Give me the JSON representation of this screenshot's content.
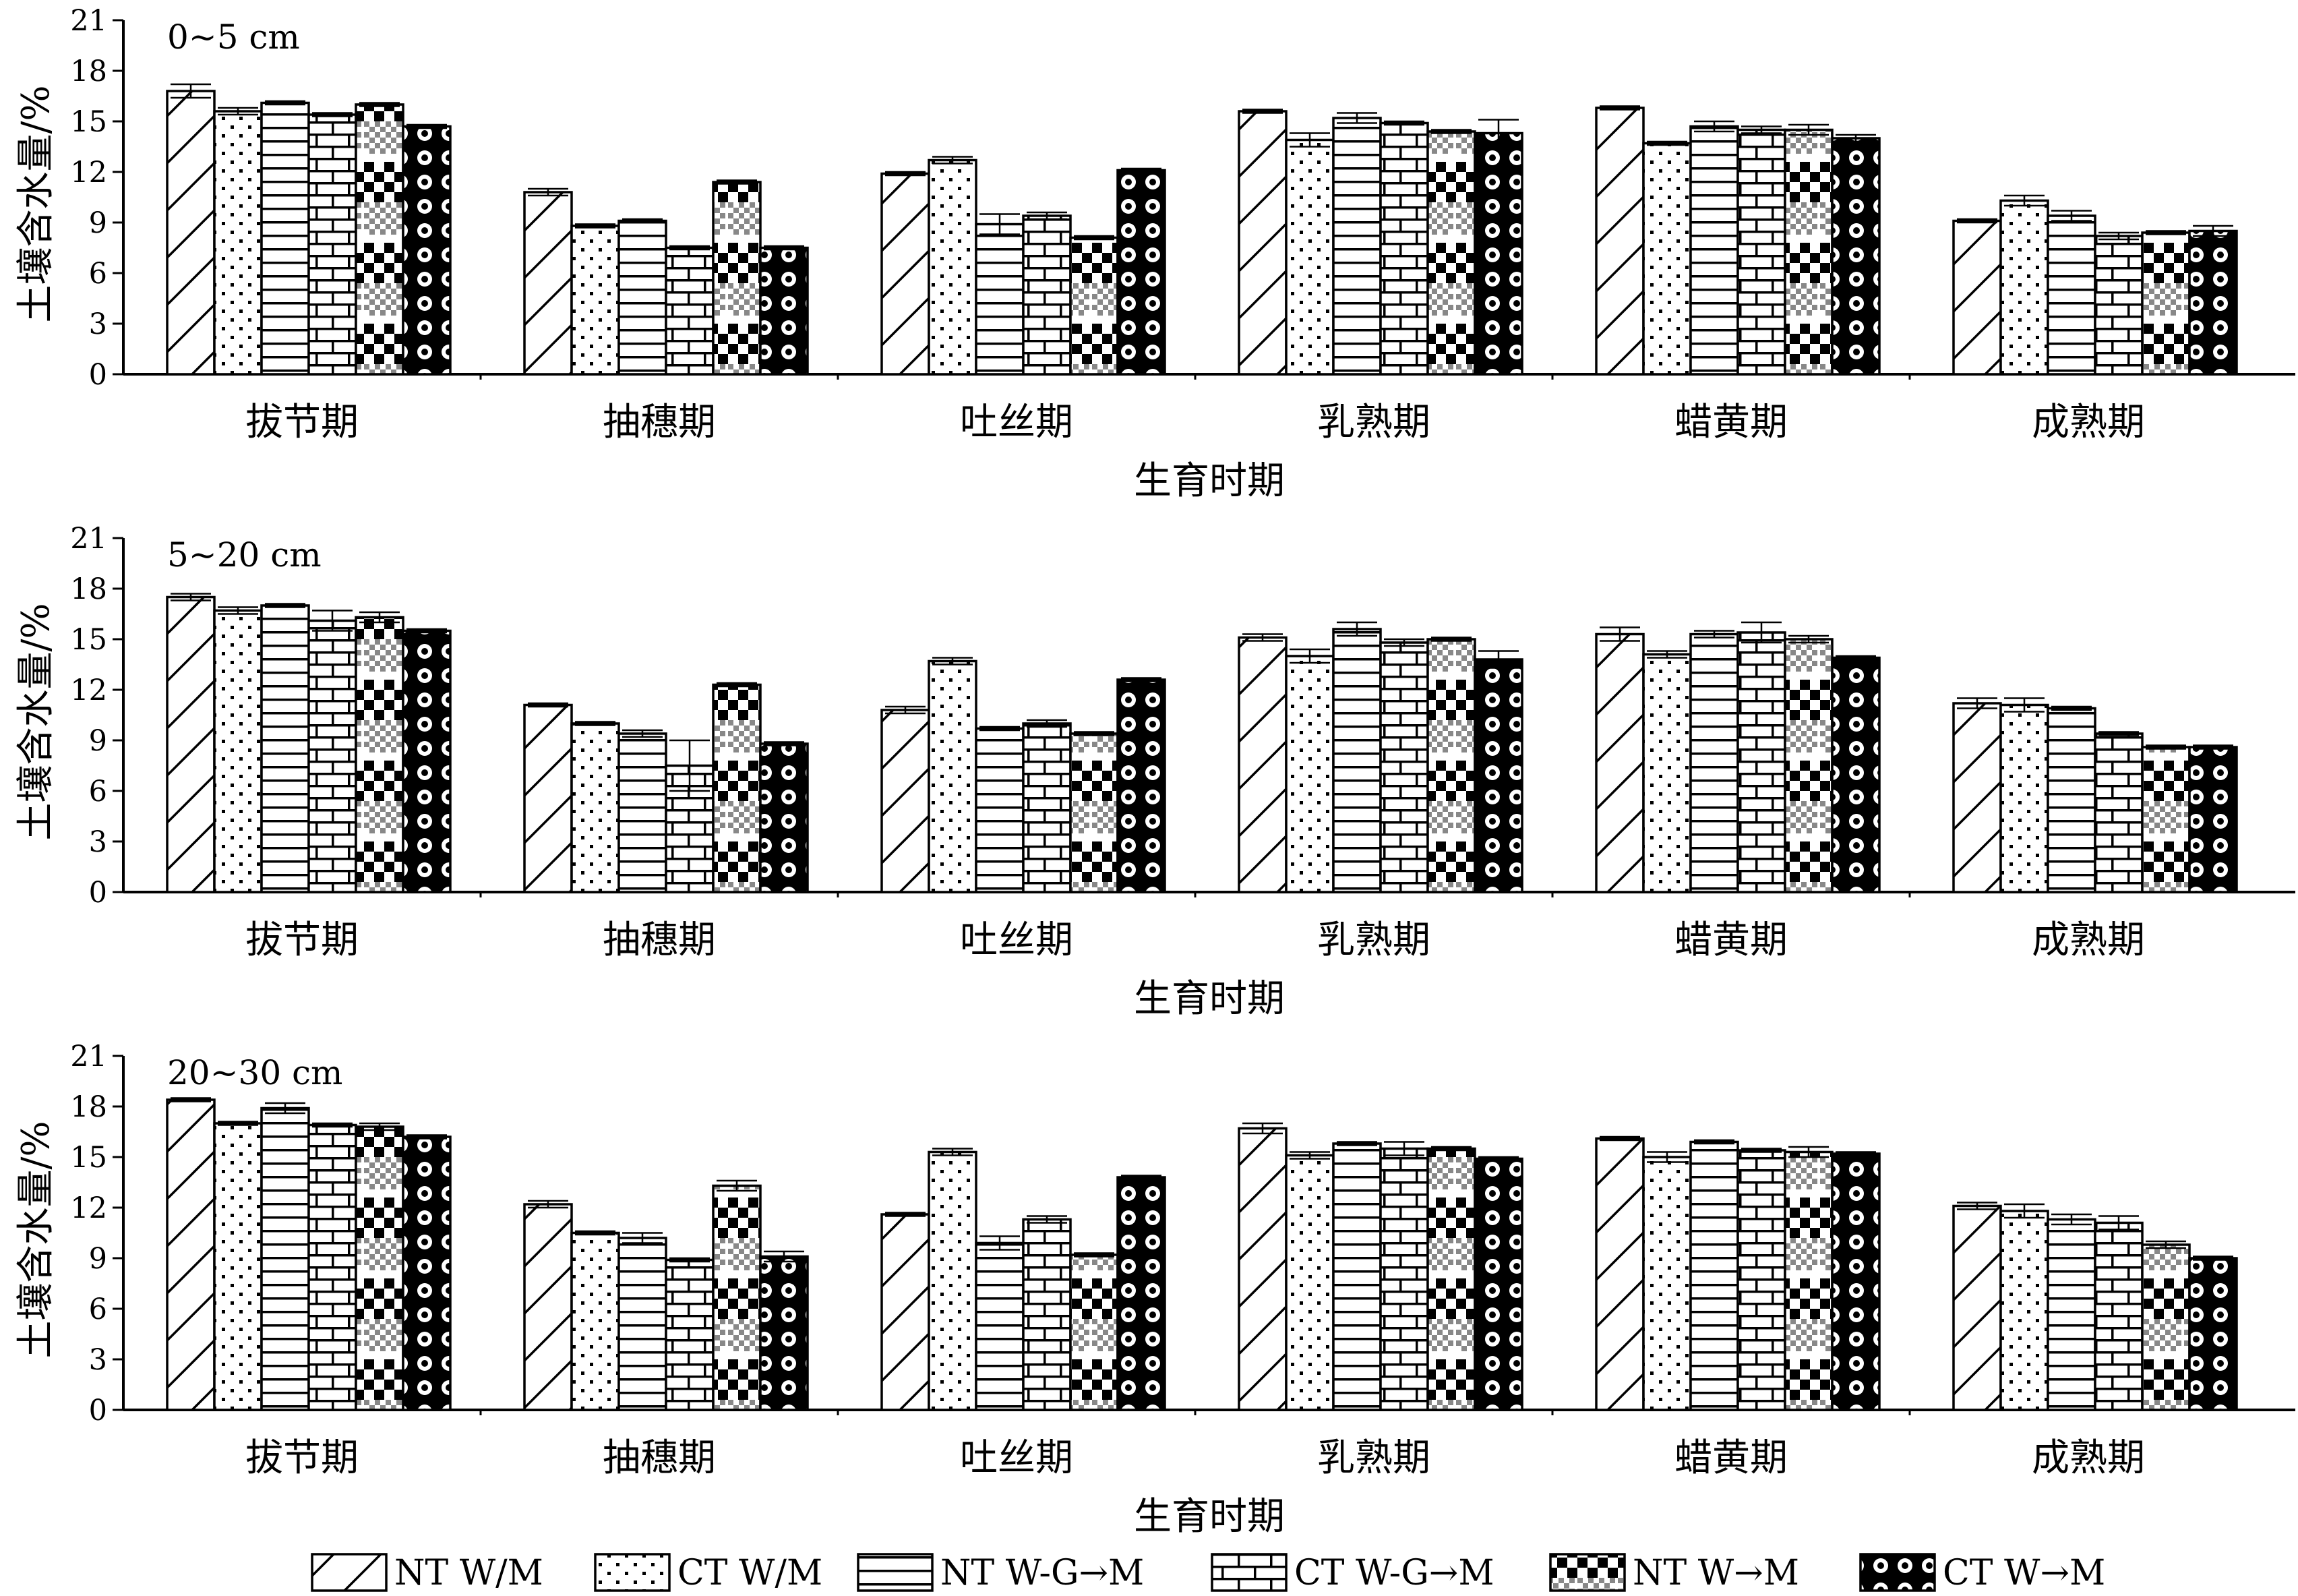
{
  "chart_data": [
    {
      "type": "bar",
      "panel_label": "0~5 cm",
      "xlabel": "生育时期",
      "ylabel": "土壤含水量/%",
      "ylim": [
        0,
        21
      ],
      "yticks": [
        0,
        3,
        6,
        9,
        12,
        15,
        18,
        21
      ],
      "categories": [
        "拔节期",
        "抽穗期",
        "吐丝期",
        "乳熟期",
        "蜡黄期",
        "成熟期"
      ],
      "series": [
        {
          "name": "NT W/M",
          "values": [
            16.8,
            10.8,
            11.9,
            15.6,
            15.8,
            9.1
          ],
          "errors": [
            0.4,
            0.2,
            0.1,
            0.1,
            0.1,
            0.1
          ]
        },
        {
          "name": "CT W/M",
          "values": [
            15.6,
            8.8,
            12.7,
            13.9,
            13.7,
            10.3
          ],
          "errors": [
            0.2,
            0.1,
            0.2,
            0.4,
            0.1,
            0.3
          ]
        },
        {
          "name": "NT W-G→M",
          "values": [
            16.1,
            9.1,
            8.9,
            15.2,
            14.7,
            9.4
          ],
          "errors": [
            0.1,
            0.1,
            0.6,
            0.3,
            0.3,
            0.3
          ]
        },
        {
          "name": "CT W-G→M",
          "values": [
            15.4,
            7.5,
            9.4,
            14.9,
            14.5,
            8.2
          ],
          "errors": [
            0.1,
            0.1,
            0.2,
            0.1,
            0.2,
            0.2
          ]
        },
        {
          "name": "NT W→M",
          "values": [
            16.0,
            11.4,
            8.1,
            14.4,
            14.5,
            8.4
          ],
          "errors": [
            0.1,
            0.1,
            0.1,
            0.1,
            0.3,
            0.1
          ]
        },
        {
          "name": "CT W→M",
          "values": [
            14.7,
            7.5,
            12.1,
            14.3,
            14.0,
            8.5
          ],
          "errors": [
            0.1,
            0.1,
            0.1,
            0.8,
            0.2,
            0.3
          ]
        }
      ]
    },
    {
      "type": "bar",
      "panel_label": "5~20 cm",
      "xlabel": "生育时期",
      "ylabel": "土壤含水量/%",
      "ylim": [
        0,
        21
      ],
      "yticks": [
        0,
        3,
        6,
        9,
        12,
        15,
        18,
        21
      ],
      "categories": [
        "拔节期",
        "抽穗期",
        "吐丝期",
        "乳熟期",
        "蜡黄期",
        "成熟期"
      ],
      "series": [
        {
          "name": "NT W/M",
          "values": [
            17.5,
            11.1,
            10.8,
            15.1,
            15.3,
            11.2
          ],
          "errors": [
            0.2,
            0.1,
            0.2,
            0.2,
            0.4,
            0.3
          ]
        },
        {
          "name": "CT W/M",
          "values": [
            16.7,
            10.0,
            13.7,
            14.0,
            14.1,
            11.1
          ],
          "errors": [
            0.2,
            0.1,
            0.2,
            0.4,
            0.2,
            0.4
          ]
        },
        {
          "name": "NT W-G→M",
          "values": [
            17.0,
            9.4,
            9.7,
            15.6,
            15.3,
            10.9
          ],
          "errors": [
            0.1,
            0.2,
            0.1,
            0.4,
            0.2,
            0.1
          ]
        },
        {
          "name": "CT W-G→M",
          "values": [
            16.1,
            7.5,
            10.0,
            14.8,
            15.4,
            9.4
          ],
          "errors": [
            0.6,
            1.5,
            0.2,
            0.2,
            0.6,
            0.1
          ]
        },
        {
          "name": "NT W→M",
          "values": [
            16.3,
            12.3,
            9.4,
            15.0,
            15.0,
            8.6
          ],
          "errors": [
            0.3,
            0.1,
            0.1,
            0.1,
            0.2,
            0.1
          ]
        },
        {
          "name": "CT W→M",
          "values": [
            15.5,
            8.8,
            12.6,
            13.8,
            13.9,
            8.6
          ],
          "errors": [
            0.1,
            0.1,
            0.1,
            0.5,
            0.1,
            0.1
          ]
        }
      ]
    },
    {
      "type": "bar",
      "panel_label": "20~30 cm",
      "xlabel": "生育时期",
      "ylabel": "土壤含水量/%",
      "ylim": [
        0,
        21
      ],
      "yticks": [
        0,
        3,
        6,
        9,
        12,
        15,
        18,
        21
      ],
      "categories": [
        "拔节期",
        "抽穗期",
        "吐丝期",
        "乳熟期",
        "蜡黄期",
        "成熟期"
      ],
      "series": [
        {
          "name": "NT W/M",
          "values": [
            18.4,
            12.2,
            11.6,
            16.7,
            16.1,
            12.1
          ],
          "errors": [
            0.1,
            0.2,
            0.1,
            0.3,
            0.1,
            0.2
          ]
        },
        {
          "name": "CT W/M",
          "values": [
            17.0,
            10.5,
            15.3,
            15.1,
            15.0,
            11.8
          ],
          "errors": [
            0.1,
            0.1,
            0.2,
            0.2,
            0.3,
            0.4
          ]
        },
        {
          "name": "NT W-G→M",
          "values": [
            17.9,
            10.2,
            9.9,
            15.8,
            15.9,
            11.3
          ],
          "errors": [
            0.3,
            0.3,
            0.4,
            0.1,
            0.1,
            0.3
          ]
        },
        {
          "name": "CT W-G→M",
          "values": [
            16.9,
            8.9,
            11.3,
            15.5,
            15.4,
            11.1
          ],
          "errors": [
            0.1,
            0.1,
            0.2,
            0.4,
            0.1,
            0.4
          ]
        },
        {
          "name": "NT W→M",
          "values": [
            16.8,
            13.3,
            9.2,
            15.5,
            15.3,
            9.8
          ],
          "errors": [
            0.2,
            0.3,
            0.1,
            0.1,
            0.3,
            0.2
          ]
        },
        {
          "name": "CT W→M",
          "values": [
            16.2,
            9.1,
            13.8,
            14.9,
            15.2,
            9.0
          ],
          "errors": [
            0.1,
            0.3,
            0.1,
            0.1,
            0.1,
            0.1
          ]
        }
      ]
    }
  ],
  "legend": {
    "items": [
      {
        "label": "NT W/M",
        "pattern": "diagonal"
      },
      {
        "label": "CT W/M",
        "pattern": "dots"
      },
      {
        "label": "NT W-G→M",
        "pattern": "horizontal"
      },
      {
        "label": "CT W-G→M",
        "pattern": "brick"
      },
      {
        "label": "NT W→M",
        "pattern": "checker"
      },
      {
        "label": "CT W→M",
        "pattern": "circles"
      }
    ]
  }
}
